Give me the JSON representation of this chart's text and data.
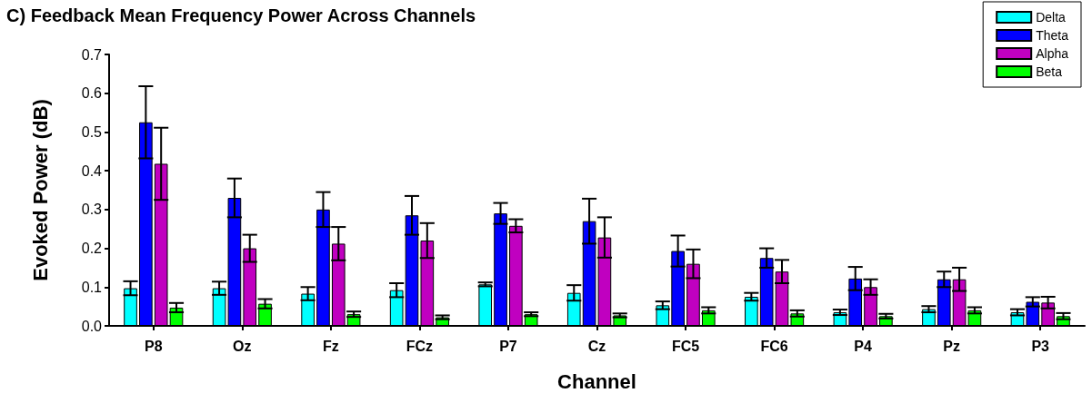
{
  "chart_data": {
    "type": "bar",
    "title": "C) Feedback Mean Frequency Power Across Channels",
    "xlabel": "Channel",
    "ylabel": "Evoked Power (dB)",
    "categories": [
      "P8",
      "Oz",
      "Fz",
      "FCz",
      "P7",
      "Cz",
      "FC5",
      "FC6",
      "P4",
      "Pz",
      "P3"
    ],
    "series": [
      {
        "name": "Delta",
        "color": "#00ffff",
        "values": [
          0.097,
          0.097,
          0.083,
          0.092,
          0.107,
          0.085,
          0.053,
          0.075,
          0.035,
          0.043,
          0.035
        ],
        "errors": [
          0.018,
          0.017,
          0.017,
          0.018,
          0.005,
          0.02,
          0.01,
          0.01,
          0.007,
          0.008,
          0.008
        ]
      },
      {
        "name": "Theta",
        "color": "#0000ff",
        "values": [
          0.525,
          0.33,
          0.3,
          0.285,
          0.29,
          0.27,
          0.193,
          0.175,
          0.122,
          0.12,
          0.062
        ],
        "errors": [
          0.093,
          0.05,
          0.045,
          0.05,
          0.027,
          0.058,
          0.04,
          0.025,
          0.03,
          0.02,
          0.012
        ]
      },
      {
        "name": "Alpha",
        "color": "#c000c0",
        "values": [
          0.418,
          0.2,
          0.212,
          0.22,
          0.258,
          0.228,
          0.16,
          0.14,
          0.1,
          0.12,
          0.06
        ],
        "errors": [
          0.093,
          0.035,
          0.043,
          0.045,
          0.017,
          0.052,
          0.037,
          0.03,
          0.02,
          0.03,
          0.015
        ]
      },
      {
        "name": "Beta",
        "color": "#00ff00",
        "values": [
          0.047,
          0.057,
          0.03,
          0.022,
          0.03,
          0.027,
          0.04,
          0.032,
          0.025,
          0.04,
          0.025
        ],
        "errors": [
          0.012,
          0.012,
          0.007,
          0.005,
          0.005,
          0.005,
          0.008,
          0.008,
          0.006,
          0.008,
          0.008
        ]
      }
    ],
    "ylim": [
      0,
      0.7
    ],
    "yticks": [
      {
        "value": 0,
        "label": "0.0"
      },
      0.1,
      0.2,
      0.3,
      0.4,
      0.5,
      0.6,
      0.7
    ],
    "grid": false,
    "legend": "top right"
  }
}
